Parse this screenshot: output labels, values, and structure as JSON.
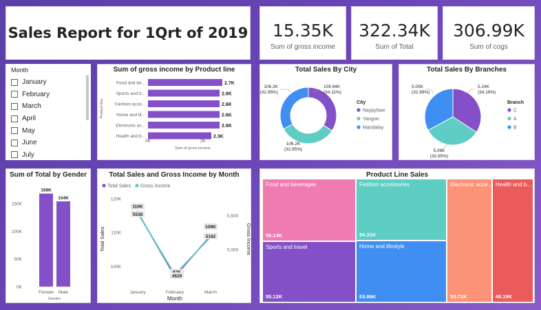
{
  "title": "Sales Report for 1Qrt of 2019",
  "kpis": [
    {
      "value": "15.35K",
      "label": "Sum of gross income"
    },
    {
      "value": "322.34K",
      "label": "Sum of Total"
    },
    {
      "value": "306.99K",
      "label": "Sum of cogs"
    }
  ],
  "month_slicer": {
    "title": "Month",
    "items": [
      "January",
      "February",
      "March",
      "April",
      "May",
      "June",
      "July"
    ]
  },
  "colors": {
    "purple": "#8450c8",
    "teal": "#5ecdc3",
    "blue": "#3f8ef2",
    "pink": "#f07bb0",
    "salmon": "#fc9276",
    "red": "#ec5b5b"
  },
  "chart_data": [
    {
      "type": "bar",
      "orientation": "horizontal",
      "title": "Sum of gross income by Product line",
      "xlabel": "Sum of gross income",
      "ylabel": "Product line",
      "categories": [
        "Food and be...",
        "Sports and tr...",
        "Fashion acce...",
        "Home and lif...",
        "Electronic ac...",
        "Health and b..."
      ],
      "values": [
        2.7,
        2.6,
        2.6,
        2.6,
        2.6,
        2.3
      ],
      "labels": [
        "2.7K",
        "2.6K",
        "2.6K",
        "2.6K",
        "2.6K",
        "2.3K"
      ],
      "xticks": [
        "0K",
        "2K"
      ],
      "xlim": [
        0,
        3.0
      ]
    },
    {
      "type": "pie",
      "donut": true,
      "title": "Total Sales By City",
      "legend_title": "City",
      "legend": [
        "Naypyitaw",
        "Yangon",
        "Mandalay"
      ],
      "values": [
        109.94,
        106.2,
        106.2
      ],
      "labels": [
        "109.94K (34.11%)",
        "106.2K (32.95%)",
        "106.2K (32.95%)"
      ]
    },
    {
      "type": "pie",
      "donut": false,
      "title": "Total Sales By Branches",
      "legend_title": "Branch",
      "legend": [
        "C",
        "A",
        "B"
      ],
      "values": [
        5.24,
        5.06,
        5.05
      ],
      "labels": [
        "5.24K (34.16%)",
        "5.06K (32.95%)",
        "5.05K (32.89%)"
      ]
    },
    {
      "type": "bar",
      "title": "Sum of Total by Gender",
      "xlabel": "Gender",
      "categories": [
        "Female",
        "Male"
      ],
      "values": [
        168,
        154
      ],
      "labels": [
        "168K",
        "154K"
      ],
      "yticks": [
        "0K",
        "50K",
        "100K",
        "150K"
      ],
      "ylim": [
        0,
        175
      ]
    },
    {
      "type": "line",
      "title": "Total Sales and Gross Income by Month",
      "xlabel": "Month",
      "ylabel": "Total Sales",
      "y2label": "Gross Income",
      "categories": [
        "January",
        "February",
        "March"
      ],
      "series": [
        {
          "name": "Total Sales",
          "values": [
            116,
            97,
            109
          ],
          "labels": [
            "116K",
            "97K",
            "109K"
          ]
        },
        {
          "name": "Gross Income",
          "values": [
            5538,
            4629,
            5182
          ],
          "labels": [
            "5538",
            "4629",
            "5182"
          ]
        }
      ],
      "yticks": [
        "100K",
        "110K",
        "120K"
      ],
      "y2ticks": [
        "5,000",
        "5,500"
      ],
      "ylim": [
        95,
        121
      ],
      "y2lim": [
        4500,
        5800
      ]
    },
    {
      "type": "heatmap",
      "subtype": "treemap",
      "title": "Product Line Sales",
      "cells": [
        {
          "name": "Food and beverages",
          "label": "56.14K",
          "value": 56.14
        },
        {
          "name": "Sports and travel",
          "label": "55.12K",
          "value": 55.12
        },
        {
          "name": "Fashion accessories",
          "label": "54.31K",
          "value": 54.31
        },
        {
          "name": "Home and lifestyle",
          "label": "53.86K",
          "value": 53.86
        },
        {
          "name": "Electronic acce...",
          "label": "53.71K",
          "value": 53.71
        },
        {
          "name": "Health and b...",
          "label": "49.19K",
          "value": 49.19
        }
      ]
    }
  ]
}
